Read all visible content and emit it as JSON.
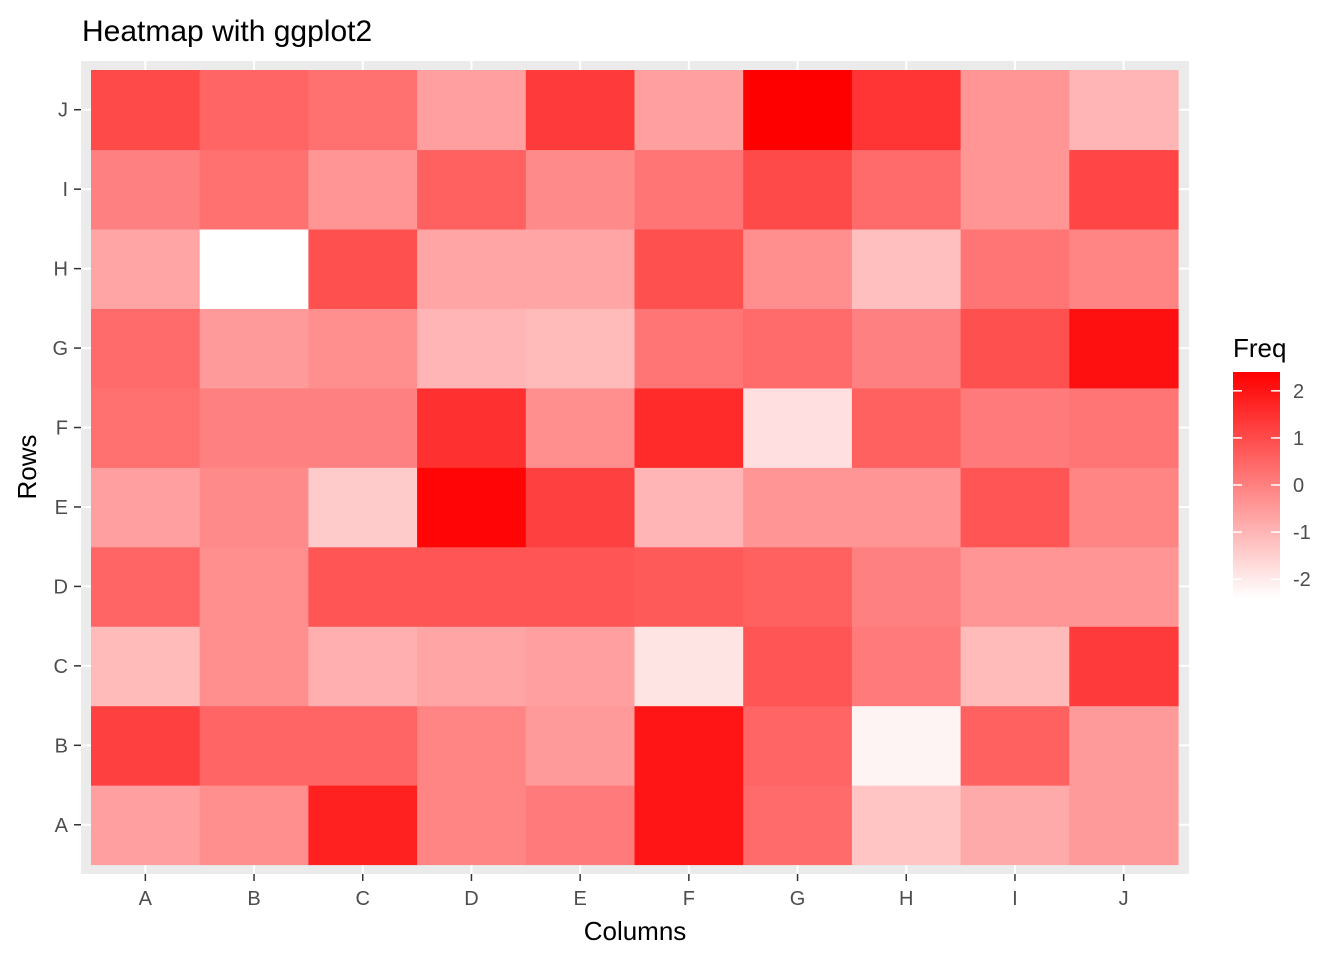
{
  "chart_data": {
    "type": "heatmap",
    "title": "Heatmap with ggplot2",
    "xlabel": "Columns",
    "ylabel": "Rows",
    "x_categories": [
      "A",
      "B",
      "C",
      "D",
      "E",
      "F",
      "G",
      "H",
      "I",
      "J"
    ],
    "y_categories": [
      "A",
      "B",
      "C",
      "D",
      "E",
      "F",
      "G",
      "H",
      "I",
      "J"
    ],
    "values": [
      [
        -0.6,
        -0.3,
        1.8,
        -0.1,
        0.1,
        2.0,
        0.4,
        -1.3,
        -0.8,
        -0.5
      ],
      [
        1.2,
        0.5,
        0.5,
        -0.1,
        -0.5,
        2.0,
        0.5,
        -2.2,
        0.6,
        -0.5
      ],
      [
        -1.1,
        -0.3,
        -0.9,
        -0.7,
        -0.6,
        -1.9,
        0.8,
        0.1,
        -1.1,
        1.3
      ],
      [
        0.5,
        -0.3,
        0.8,
        0.8,
        0.8,
        0.7,
        0.6,
        0.0,
        -0.4,
        -0.4
      ],
      [
        -0.6,
        -0.2,
        -1.4,
        2.3,
        1.2,
        -1.0,
        -0.4,
        -0.4,
        0.8,
        -0.1
      ],
      [
        0.3,
        0.0,
        0.0,
        1.5,
        -0.3,
        1.6,
        -1.8,
        0.6,
        0.1,
        0.2
      ],
      [
        0.4,
        -0.5,
        -0.3,
        -1.0,
        -1.1,
        0.2,
        0.4,
        0.0,
        0.9,
        2.1
      ],
      [
        -0.7,
        -2.4,
        0.9,
        -0.7,
        -0.7,
        0.9,
        -0.3,
        -1.2,
        0.2,
        -0.1
      ],
      [
        0.0,
        0.3,
        -0.4,
        0.6,
        -0.2,
        0.2,
        1.0,
        0.4,
        -0.4,
        1.1
      ],
      [
        1.0,
        0.5,
        0.3,
        -0.6,
        1.3,
        -0.6,
        2.4,
        1.4,
        -0.4,
        -1.0
      ]
    ],
    "color_low": "#ffffff",
    "color_high": "#ff0000",
    "panel_background": "#ebebeb",
    "grid_color": "#ffffff",
    "legend": {
      "title": "Freq",
      "position": "right",
      "breaks": [
        2,
        1,
        0,
        -1,
        -2
      ],
      "labels": [
        "2",
        "1",
        "0",
        "-1",
        "-2"
      ],
      "range": [
        -2.4,
        2.4
      ]
    }
  }
}
